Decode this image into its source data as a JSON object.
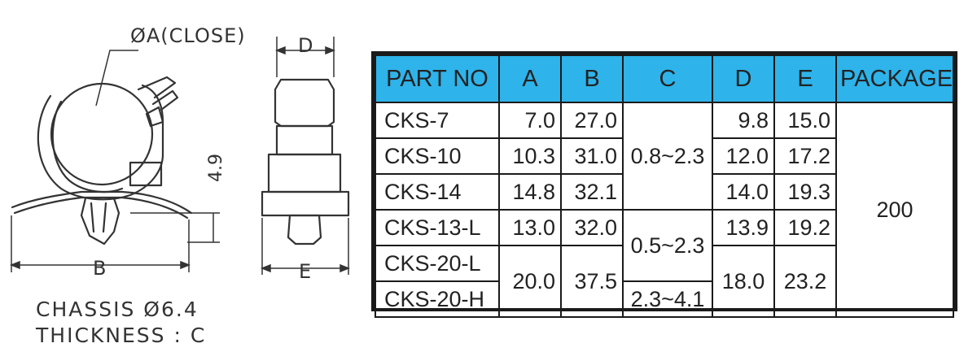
{
  "drawing": {
    "side_view": {
      "label_diameter": "ØA(CLOSE)",
      "label_height": "4.9",
      "label_width": "B"
    },
    "front_view": {
      "label_top": "D",
      "label_bottom": "E"
    },
    "notes": {
      "chassis": "CHASSIS  Ø6.4",
      "thickness": "THICKNESS : C"
    },
    "header_color": "#2eb3ea"
  },
  "table": {
    "headers": {
      "part_no": "PART NO",
      "a": "A",
      "b": "B",
      "c": "C",
      "d": "D",
      "e": "E",
      "package": "PACKAGE"
    },
    "rows": [
      {
        "part": "CKS-7",
        "a": "7.0",
        "b": "27.0",
        "d": "9.8",
        "e": "15.0"
      },
      {
        "part": "CKS-10",
        "a": "10.3",
        "b": "31.0",
        "d": "12.0",
        "e": "17.2"
      },
      {
        "part": "CKS-14",
        "a": "14.8",
        "b": "32.1",
        "d": "14.0",
        "e": "19.3"
      },
      {
        "part": "CKS-13-L",
        "a": "13.0",
        "b": "32.0",
        "d": "13.9",
        "e": "19.2"
      },
      {
        "part": "CKS-20-L"
      },
      {
        "part": "CKS-20-H"
      }
    ],
    "merged": {
      "a_20": "20.0",
      "b_20": "37.5",
      "c_group1": "0.8~2.3",
      "c_group2": "0.5~2.3",
      "c_20h": "2.3~4.1",
      "d_20": "18.0",
      "e_20": "23.2",
      "package": "200"
    }
  }
}
